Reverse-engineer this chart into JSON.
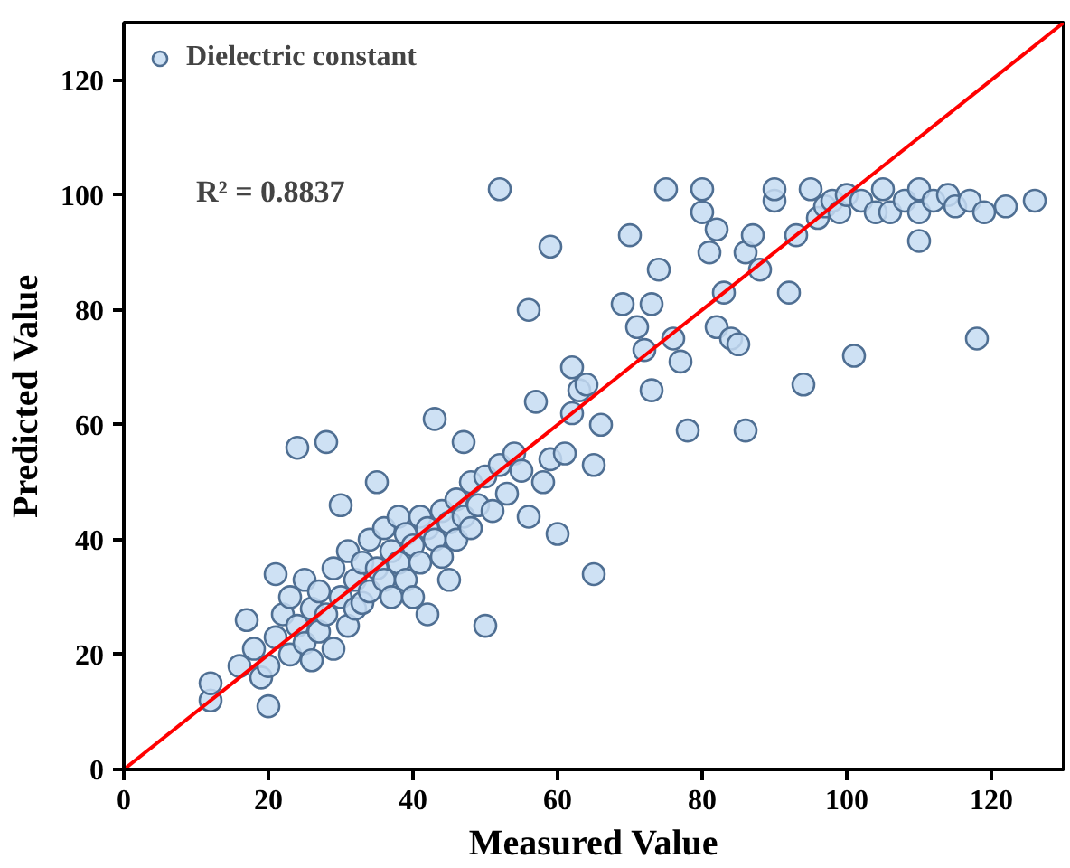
{
  "chart_data": {
    "type": "scatter",
    "xlabel": "Measured Value",
    "ylabel": "Predicted Value",
    "xlim": [
      0,
      130
    ],
    "ylim": [
      0,
      130
    ],
    "xticks": [
      0,
      20,
      40,
      60,
      80,
      100,
      120
    ],
    "yticks": [
      0,
      20,
      40,
      60,
      80,
      100,
      120
    ],
    "grid": false,
    "legend": "top left",
    "annotations": [
      "R² = 0.8837"
    ],
    "series": [
      {
        "name": "Dielectric constant",
        "marker": "circle",
        "color": "#c6dcf2",
        "x": [
          12,
          12,
          16,
          17,
          18,
          19,
          20,
          20,
          21,
          21,
          22,
          23,
          23,
          24,
          24,
          25,
          25,
          26,
          26,
          27,
          27,
          28,
          28,
          29,
          29,
          30,
          30,
          31,
          31,
          32,
          32,
          33,
          33,
          34,
          34,
          35,
          35,
          36,
          36,
          37,
          37,
          38,
          38,
          39,
          39,
          40,
          40,
          41,
          41,
          42,
          42,
          43,
          43,
          44,
          44,
          45,
          45,
          46,
          46,
          47,
          47,
          48,
          48,
          49,
          50,
          50,
          51,
          52,
          52,
          53,
          54,
          55,
          56,
          56,
          57,
          58,
          59,
          59,
          60,
          61,
          62,
          62,
          63,
          64,
          65,
          65,
          66,
          69,
          70,
          71,
          72,
          73,
          73,
          74,
          75,
          76,
          77,
          78,
          80,
          80,
          81,
          82,
          82,
          83,
          84,
          85,
          86,
          86,
          87,
          88,
          90,
          90,
          92,
          93,
          94,
          95,
          96,
          97,
          98,
          99,
          100,
          101,
          102,
          104,
          105,
          106,
          108,
          110,
          110,
          110,
          112,
          114,
          115,
          117,
          118,
          119,
          122,
          126
        ],
        "values": [
          12,
          15,
          18,
          26,
          21,
          16,
          11,
          18,
          23,
          34,
          27,
          20,
          30,
          25,
          56,
          33,
          22,
          28,
          19,
          31,
          24,
          57,
          27,
          35,
          21,
          30,
          46,
          25,
          38,
          33,
          28,
          36,
          29,
          40,
          31,
          50,
          35,
          33,
          42,
          38,
          30,
          36,
          44,
          41,
          33,
          39,
          30,
          44,
          36,
          42,
          27,
          61,
          40,
          45,
          37,
          43,
          33,
          47,
          40,
          57,
          44,
          50,
          42,
          46,
          25,
          51,
          45,
          101,
          53,
          48,
          55,
          52,
          80,
          44,
          64,
          50,
          91,
          54,
          41,
          55,
          70,
          62,
          66,
          67,
          34,
          53,
          60,
          81,
          93,
          77,
          73,
          66,
          81,
          87,
          101,
          75,
          71,
          59,
          97,
          101,
          90,
          94,
          77,
          83,
          75,
          74,
          59,
          90,
          93,
          87,
          99,
          101,
          83,
          93,
          67,
          101,
          96,
          98,
          99,
          97,
          100,
          72,
          99,
          97,
          101,
          97,
          99,
          101,
          97,
          92,
          99,
          100,
          98,
          99,
          75,
          97,
          98,
          99
        ]
      },
      {
        "type": "line",
        "marker": "none",
        "color": "#ff0000",
        "x": [
          0,
          130
        ],
        "values": [
          0,
          130
        ]
      }
    ]
  }
}
